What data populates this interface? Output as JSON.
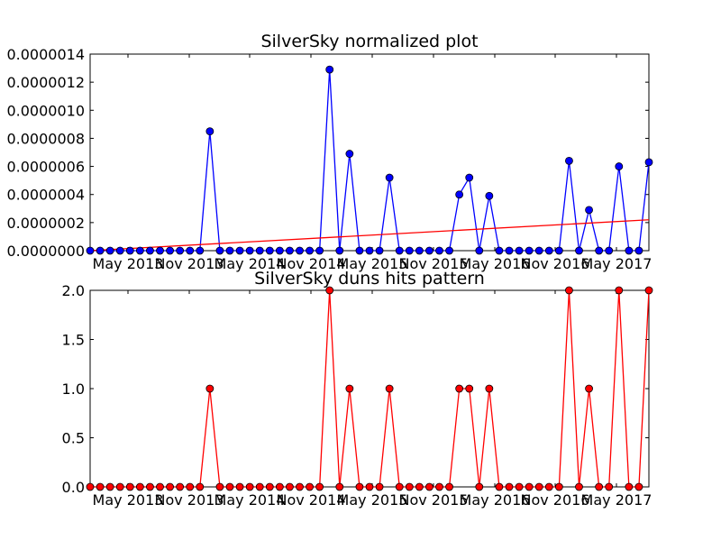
{
  "chart_data": [
    {
      "type": "line",
      "title": "SilverSky normalized plot",
      "xlabel": "",
      "ylabel": "",
      "x_tick_labels": [
        "May 2013",
        "Nov 2013",
        "May 2014",
        "Nov 2014",
        "May 2015",
        "Nov 2015",
        "May 2016",
        "Nov 2016",
        "May 2017"
      ],
      "y_tick_labels": [
        "0.0000000",
        "0.0000002",
        "0.0000004",
        "0.0000006",
        "0.0000008",
        "0.0000010",
        "0.0000012",
        "0.0000014"
      ],
      "ylim": [
        0,
        1.4e-06
      ],
      "grid": false,
      "series": [
        {
          "color": "#0000ff",
          "marker": "circle",
          "values": [
            0,
            0,
            0,
            0,
            0,
            0,
            0,
            0,
            0,
            0,
            0,
            0,
            8.5e-07,
            0,
            0,
            0,
            0,
            0,
            0,
            0,
            0,
            0,
            0,
            0,
            1.29e-06,
            0,
            6.9e-07,
            0,
            0,
            0,
            5.2e-07,
            0,
            0,
            0,
            0,
            0,
            0,
            4e-07,
            5.2e-07,
            0,
            3.9e-07,
            0,
            0,
            0,
            0,
            0,
            0,
            0,
            6.4e-07,
            0,
            2.9e-07,
            0,
            0,
            6e-07,
            0,
            0,
            6.3e-07
          ]
        },
        {
          "color": "#ff0000",
          "marker": "none",
          "values": [
            0,
            2.2e-07
          ]
        }
      ]
    },
    {
      "type": "line",
      "title": "SilverSky duns hits pattern",
      "xlabel": "",
      "ylabel": "",
      "x_tick_labels": [
        "May 2013",
        "Nov 2013",
        "May 2014",
        "Nov 2014",
        "May 2015",
        "Nov 2015",
        "May 2016",
        "Nov 2016",
        "May 2017"
      ],
      "y_tick_labels": [
        "0.0",
        "0.5",
        "1.0",
        "1.5",
        "2.0"
      ],
      "ylim": [
        0,
        2
      ],
      "grid": false,
      "series": [
        {
          "color": "#ff0000",
          "marker": "circle",
          "values": [
            0,
            0,
            0,
            0,
            0,
            0,
            0,
            0,
            0,
            0,
            0,
            0,
            1,
            0,
            0,
            0,
            0,
            0,
            0,
            0,
            0,
            0,
            0,
            0,
            2,
            0,
            1,
            0,
            0,
            0,
            1,
            0,
            0,
            0,
            0,
            0,
            0,
            1,
            1,
            0,
            1,
            0,
            0,
            0,
            0,
            0,
            0,
            0,
            2,
            0,
            1,
            0,
            0,
            2,
            0,
            0,
            2
          ]
        }
      ]
    }
  ]
}
